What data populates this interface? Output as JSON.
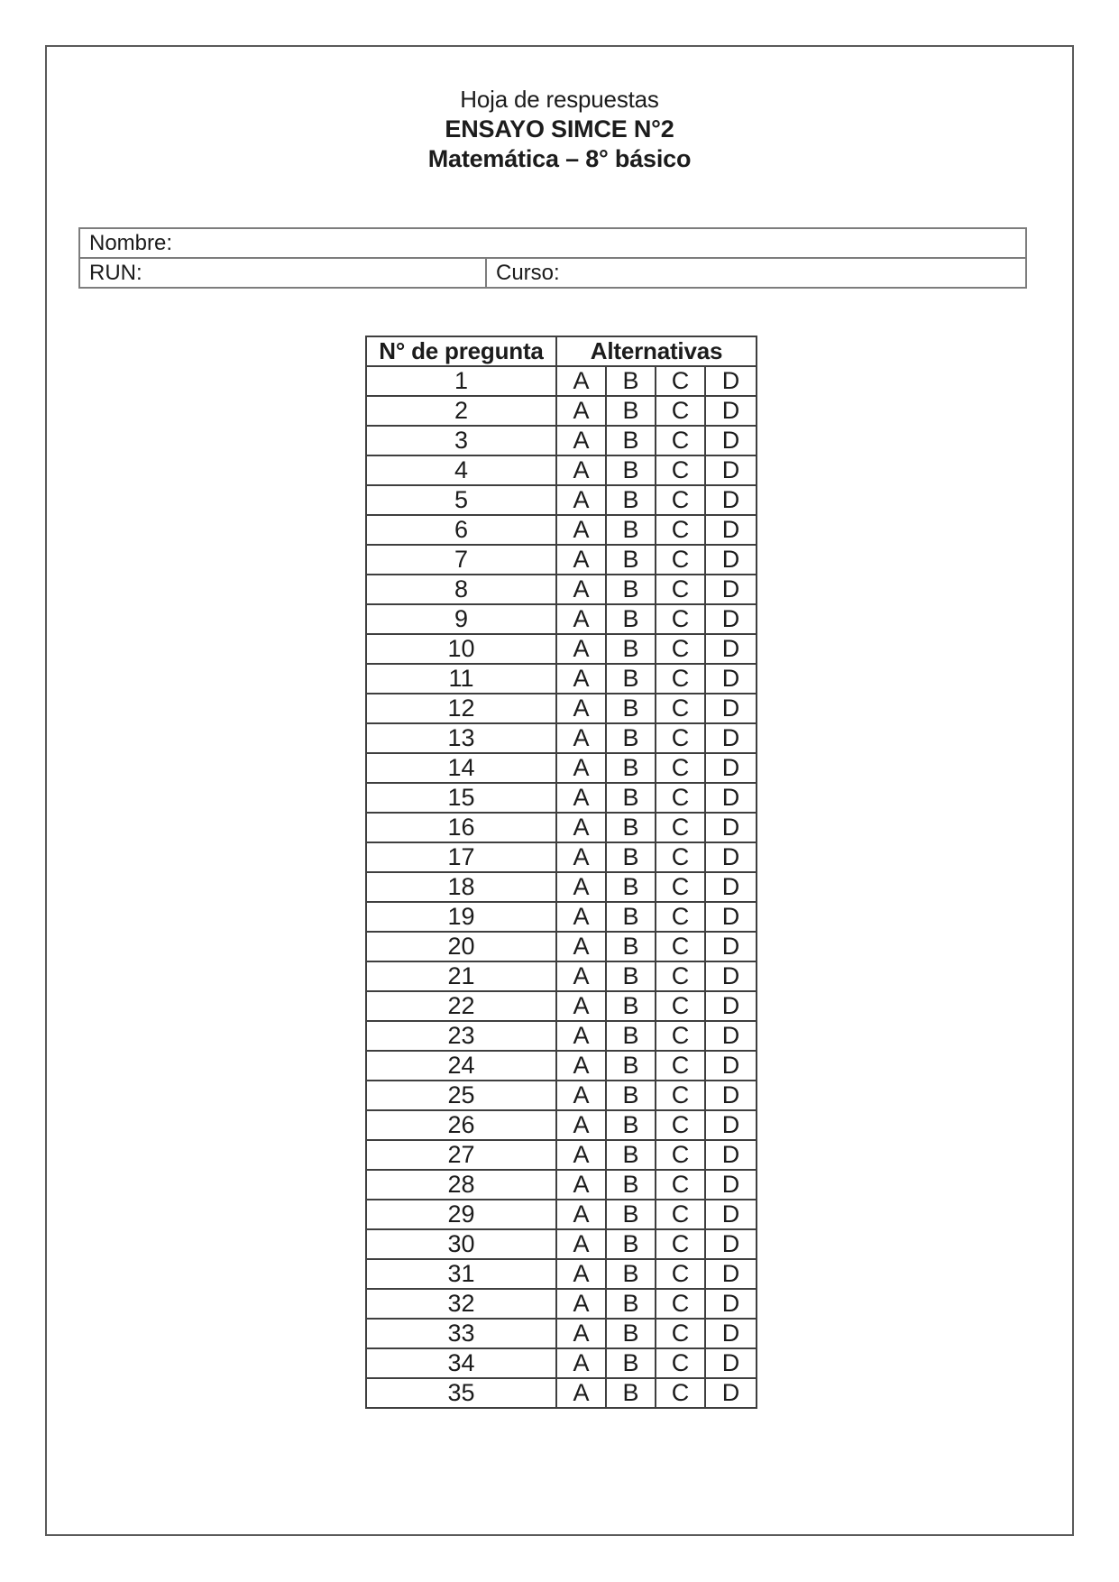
{
  "document": {
    "title_line1": "Hoja de respuestas",
    "title_line2": "ENSAYO SIMCE N°2",
    "title_line3": "Matemática – 8° básico"
  },
  "form": {
    "nombre_label": "Nombre:",
    "nombre_value": "",
    "run_label": "RUN:",
    "run_value": "",
    "curso_label": "Curso:",
    "curso_value": ""
  },
  "answer_table": {
    "question_header": "N° de pregunta",
    "alternatives_header": "Alternativas",
    "alternatives": [
      "A",
      "B",
      "C",
      "D"
    ],
    "question_numbers": [
      "1",
      "2",
      "3",
      "4",
      "5",
      "6",
      "7",
      "8",
      "9",
      "10",
      "11",
      "12",
      "13",
      "14",
      "15",
      "16",
      "17",
      "18",
      "19",
      "20",
      "21",
      "22",
      "23",
      "24",
      "25",
      "26",
      "27",
      "28",
      "29",
      "30",
      "31",
      "32",
      "33",
      "34",
      "35"
    ]
  },
  "colors": {
    "text": "#1c1c1c",
    "page_border": "#5a5a5a",
    "info_table_border": "#7d7d7d",
    "answer_table_border": "#3f3f3f",
    "background": "#ffffff"
  }
}
